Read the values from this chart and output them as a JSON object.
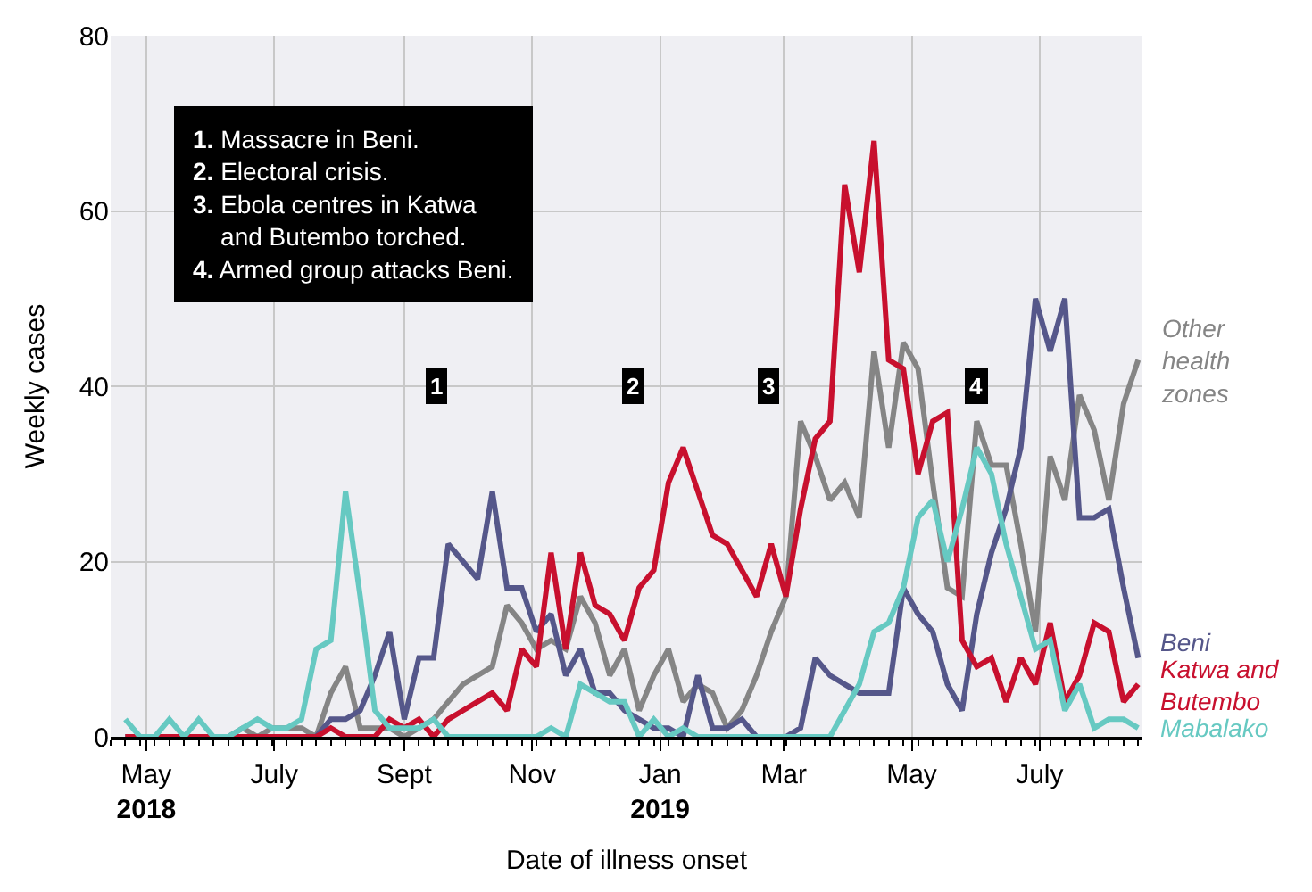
{
  "chart_data": {
    "type": "line",
    "xlabel": "Date of illness onset",
    "ylabel": "Weekly cases",
    "x": [
      "2018-04-21",
      "2018-04-28",
      "2018-05-05",
      "2018-05-12",
      "2018-05-19",
      "2018-05-26",
      "2018-06-02",
      "2018-06-09",
      "2018-06-16",
      "2018-06-23",
      "2018-06-30",
      "2018-07-07",
      "2018-07-14",
      "2018-07-21",
      "2018-07-28",
      "2018-08-04",
      "2018-08-11",
      "2018-08-18",
      "2018-08-25",
      "2018-09-01",
      "2018-09-08",
      "2018-09-15",
      "2018-09-22",
      "2018-09-29",
      "2018-10-06",
      "2018-10-13",
      "2018-10-20",
      "2018-10-27",
      "2018-11-03",
      "2018-11-10",
      "2018-11-17",
      "2018-11-24",
      "2018-12-01",
      "2018-12-08",
      "2018-12-15",
      "2018-12-22",
      "2018-12-29",
      "2019-01-05",
      "2019-01-12",
      "2019-01-19",
      "2019-01-26",
      "2019-02-02",
      "2019-02-09",
      "2019-02-16",
      "2019-02-23",
      "2019-03-02",
      "2019-03-09",
      "2019-03-16",
      "2019-03-23",
      "2019-03-30",
      "2019-04-06",
      "2019-04-13",
      "2019-04-20",
      "2019-04-27",
      "2019-05-04",
      "2019-05-11",
      "2019-05-18",
      "2019-05-25",
      "2019-06-01",
      "2019-06-08",
      "2019-06-15",
      "2019-06-22",
      "2019-06-29",
      "2019-07-06",
      "2019-07-13",
      "2019-07-20",
      "2019-07-27",
      "2019-08-03",
      "2019-08-10",
      "2019-08-17"
    ],
    "series": [
      {
        "name": "Other\nhealth\nzones",
        "color": "#858585",
        "values": [
          0,
          0,
          0,
          0,
          0,
          0,
          0,
          0,
          1,
          0,
          1,
          1,
          1,
          0,
          5,
          8,
          1,
          1,
          1,
          0,
          1,
          2,
          4,
          6,
          7,
          8,
          15,
          13,
          10,
          11,
          10,
          16,
          13,
          7,
          10,
          3,
          7,
          10,
          4,
          6,
          5,
          1,
          3,
          7,
          12,
          16,
          36,
          32,
          27,
          29,
          25,
          44,
          33,
          45,
          42,
          29,
          17,
          16,
          36,
          31,
          31,
          22,
          12,
          32,
          27,
          39,
          35,
          27,
          38,
          43
        ]
      },
      {
        "name": "Beni",
        "color": "#55578a",
        "values": [
          0,
          0,
          0,
          0,
          0,
          0,
          0,
          0,
          0,
          0,
          0,
          0,
          0,
          0,
          2,
          2,
          3,
          7,
          12,
          2,
          9,
          9,
          22,
          20,
          18,
          28,
          17,
          17,
          12,
          14,
          7,
          10,
          5,
          5,
          3,
          2,
          1,
          1,
          0,
          7,
          1,
          1,
          2,
          0,
          0,
          0,
          1,
          9,
          7,
          6,
          5,
          5,
          5,
          17,
          14,
          12,
          6,
          3,
          14,
          21,
          26,
          33,
          50,
          44,
          50,
          25,
          25,
          26,
          17,
          9
        ]
      },
      {
        "name": "Katwa and\nButembo",
        "color": "#c8102e",
        "values": [
          0,
          0,
          0,
          0,
          0,
          0,
          0,
          0,
          0,
          0,
          0,
          0,
          0,
          0,
          1,
          0,
          0,
          0,
          2,
          1,
          2,
          0,
          2,
          3,
          4,
          5,
          3,
          10,
          8,
          21,
          10,
          21,
          15,
          14,
          11,
          17,
          19,
          29,
          33,
          28,
          23,
          22,
          19,
          16,
          22,
          16,
          26,
          34,
          36,
          63,
          53,
          68,
          43,
          42,
          30,
          36,
          37,
          11,
          8,
          9,
          4,
          9,
          6,
          13,
          4,
          7,
          13,
          12,
          4,
          6
        ]
      },
      {
        "name": "Mabalako",
        "color": "#66c9c2",
        "values": [
          2,
          0,
          0,
          2,
          0,
          2,
          0,
          0,
          1,
          2,
          1,
          1,
          2,
          10,
          11,
          28,
          16,
          3,
          1,
          1,
          1,
          2,
          0,
          0,
          0,
          0,
          0,
          0,
          0,
          1,
          0,
          6,
          5,
          4,
          4,
          0,
          2,
          0,
          1,
          0,
          0,
          0,
          0,
          0,
          0,
          0,
          0,
          0,
          0,
          3,
          6,
          12,
          13,
          17,
          25,
          27,
          20,
          26,
          33,
          30,
          22,
          16,
          10,
          11,
          3,
          6,
          1,
          2,
          2,
          1
        ]
      }
    ],
    "xlim": [
      "2018-04-14",
      "2019-08-19"
    ],
    "xticks": [
      {
        "value": "2018-05-01",
        "label": "May\n2018"
      },
      {
        "value": "2018-07-01",
        "label": "July"
      },
      {
        "value": "2018-09-01",
        "label": "Sept"
      },
      {
        "value": "2018-11-01",
        "label": "Nov"
      },
      {
        "value": "2019-01-01",
        "label": "Jan\n2019"
      },
      {
        "value": "2019-03-01",
        "label": "Mar"
      },
      {
        "value": "2019-05-01",
        "label": "May"
      },
      {
        "value": "2019-07-01",
        "label": "July"
      }
    ],
    "ylim": [
      0,
      80
    ],
    "yticks": [
      0,
      20,
      40,
      60,
      80
    ],
    "grid": true,
    "legend": false,
    "marker": "none",
    "line_style": "solid",
    "annotations": [
      "1. Massacre in Beni.\n2. Electoral crisis.\n3. Ebola centres in Katwa\nand Butembo torched.\n4. Armed group attacks Beni.",
      {
        "text": "1",
        "x": "2018-09-16",
        "y": 40
      },
      {
        "text": "2",
        "x": "2018-12-19",
        "y": 40
      },
      {
        "text": "3",
        "x": "2019-02-22",
        "y": 40
      },
      {
        "text": "4",
        "x": "2019-06-01",
        "y": 40
      }
    ]
  }
}
